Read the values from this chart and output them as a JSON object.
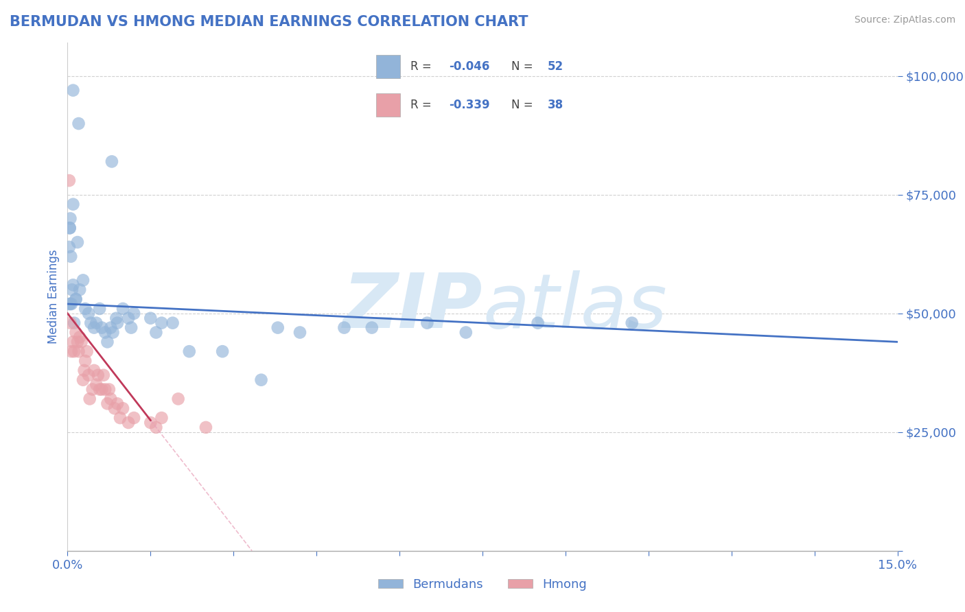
{
  "title": "BERMUDAN VS HMONG MEDIAN EARNINGS CORRELATION CHART",
  "source": "Source: ZipAtlas.com",
  "ylabel": "Median Earnings",
  "y_ticks": [
    0,
    25000,
    50000,
    75000,
    100000
  ],
  "y_tick_labels": [
    "",
    "$25,000",
    "$50,000",
    "$75,000",
    "$100,000"
  ],
  "x_min": 0.0,
  "x_max": 15.0,
  "y_min": 0,
  "y_max": 107000,
  "blue_color": "#92b4d9",
  "pink_color": "#e8a0a8",
  "blue_line_color": "#4472c4",
  "pink_line_color": "#c0395a",
  "pink_dash_color": "#e8a0b8",
  "title_color": "#4472c4",
  "axis_label_color": "#4472c4",
  "tick_label_color": "#4472c4",
  "watermark_color": "#d8e8f5",
  "legend_label1": "Bermudans",
  "legend_label2": "Hmong",
  "blue_intercept": 52000,
  "blue_slope": -533,
  "pink_intercept": 50000,
  "pink_slope": -15000,
  "pink_solid_end": 1.5,
  "blue_x": [
    0.1,
    0.2,
    0.8,
    0.1,
    0.05,
    0.03,
    0.15,
    0.04,
    0.03,
    0.06,
    0.08,
    0.1,
    0.12,
    0.15,
    0.18,
    0.22,
    0.28,
    0.32,
    0.38,
    0.42,
    0.48,
    0.52,
    0.58,
    0.62,
    0.68,
    0.72,
    0.78,
    0.82,
    0.88,
    0.9,
    1.0,
    1.1,
    1.15,
    1.2,
    1.5,
    1.6,
    1.7,
    1.9,
    2.2,
    2.8,
    3.5,
    3.8,
    4.2,
    5.0,
    5.5,
    6.5,
    7.2,
    8.5,
    10.2,
    0.05,
    0.07,
    0.04
  ],
  "blue_y": [
    97000,
    90000,
    82000,
    73000,
    70000,
    52000,
    53000,
    68000,
    64000,
    62000,
    55000,
    56000,
    48000,
    53000,
    65000,
    55000,
    57000,
    51000,
    50000,
    48000,
    47000,
    48000,
    51000,
    47000,
    46000,
    44000,
    47000,
    46000,
    49000,
    48000,
    51000,
    49000,
    47000,
    50000,
    49000,
    46000,
    48000,
    48000,
    42000,
    42000,
    36000,
    47000,
    46000,
    47000,
    47000,
    48000,
    46000,
    48000,
    48000,
    52000,
    52000,
    68000
  ],
  "pink_x": [
    0.03,
    0.05,
    0.07,
    0.1,
    0.12,
    0.15,
    0.18,
    0.2,
    0.22,
    0.25,
    0.28,
    0.3,
    0.32,
    0.35,
    0.38,
    0.4,
    0.45,
    0.48,
    0.52,
    0.55,
    0.58,
    0.62,
    0.65,
    0.68,
    0.72,
    0.75,
    0.78,
    0.85,
    0.9,
    0.95,
    1.0,
    1.1,
    1.2,
    1.5,
    1.6,
    1.7,
    2.0,
    2.5
  ],
  "pink_y": [
    78000,
    48000,
    42000,
    44000,
    42000,
    46000,
    44000,
    42000,
    45000,
    44000,
    36000,
    38000,
    40000,
    42000,
    37000,
    32000,
    34000,
    38000,
    35000,
    37000,
    34000,
    34000,
    37000,
    34000,
    31000,
    34000,
    32000,
    30000,
    31000,
    28000,
    30000,
    27000,
    28000,
    27000,
    26000,
    28000,
    32000,
    26000
  ]
}
